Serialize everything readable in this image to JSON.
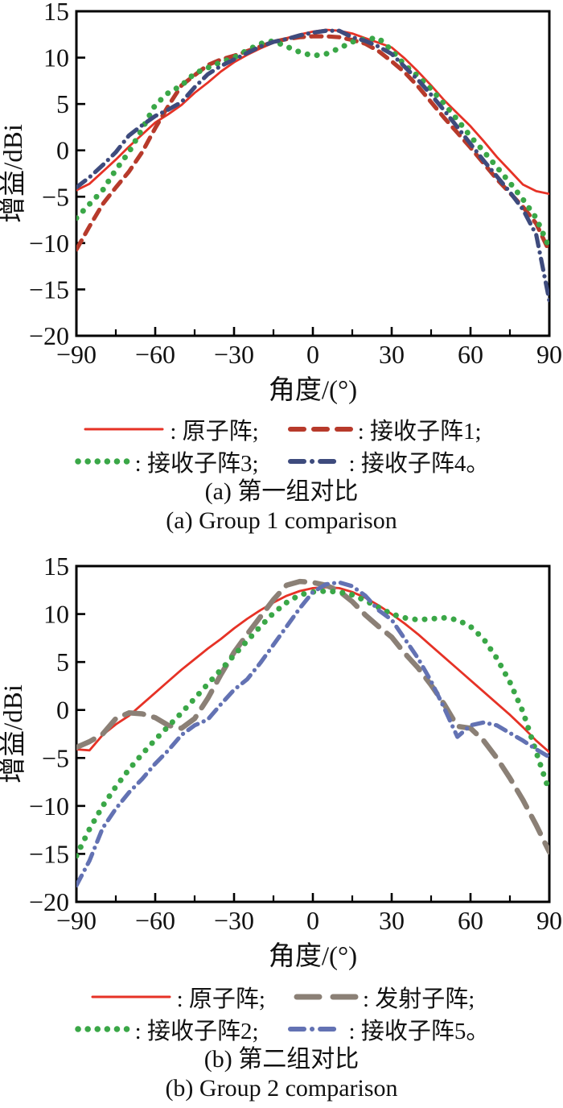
{
  "chart_data": [
    {
      "id": "a",
      "type": "line",
      "xlabel": "角度/(°)",
      "ylabel": "增益/dBi",
      "xlim": [
        -90,
        90
      ],
      "ylim": [
        -20,
        15
      ],
      "x_major_ticks": [
        -90,
        -60,
        -30,
        0,
        30,
        60,
        90
      ],
      "x_minor_step": 15,
      "y_major_ticks": [
        15,
        10,
        5,
        0,
        -5,
        -10,
        -15,
        -20
      ],
      "grid": false,
      "legend_position": "below-axis",
      "frame_color": "#000000",
      "x": [
        -90,
        -85,
        -80,
        -75,
        -70,
        -65,
        -60,
        -55,
        -50,
        -45,
        -40,
        -35,
        -30,
        -25,
        -20,
        -15,
        -10,
        -5,
        0,
        5,
        10,
        15,
        20,
        25,
        30,
        35,
        40,
        45,
        50,
        55,
        60,
        65,
        70,
        75,
        80,
        85,
        90
      ],
      "series": [
        {
          "name": "原子阵",
          "legend_label": ": 原子阵;",
          "color": "#e63226",
          "style": "solid",
          "values": [
            -4.3,
            -3.6,
            -2.3,
            -1.0,
            0.4,
            1.7,
            3.0,
            3.9,
            4.9,
            6.2,
            7.3,
            8.5,
            9.5,
            10.3,
            11.0,
            11.6,
            12.1,
            12.5,
            12.8,
            13.0,
            12.9,
            12.6,
            12.1,
            11.6,
            11.1,
            9.9,
            8.5,
            7.0,
            5.4,
            4.0,
            2.6,
            1.0,
            -0.7,
            -2.2,
            -3.7,
            -4.4,
            -4.7
          ]
        },
        {
          "name": "接收子阵1",
          "legend_label": ": 接收子阵1;",
          "color": "#b73a2b",
          "style": "dashed",
          "values": [
            -10.7,
            -8.2,
            -5.8,
            -4.0,
            -2.3,
            -0.2,
            2.4,
            4.8,
            7.0,
            8.1,
            9.2,
            9.8,
            10.2,
            10.7,
            11.2,
            11.7,
            12.0,
            12.2,
            12.3,
            12.3,
            12.2,
            11.9,
            11.5,
            10.7,
            9.6,
            8.4,
            6.9,
            5.2,
            3.5,
            1.9,
            0.3,
            -1.4,
            -3.1,
            -4.6,
            -6.1,
            -7.9,
            -10.9
          ]
        },
        {
          "name": "接收子阵3",
          "legend_label": ": 接收子阵3;",
          "color": "#3aa747",
          "style": "dotted",
          "values": [
            -7.3,
            -5.8,
            -4.3,
            -2.1,
            -0.2,
            2.3,
            4.9,
            6.2,
            7.0,
            8.3,
            8.9,
            9.5,
            10.0,
            10.8,
            11.5,
            11.8,
            11.2,
            10.6,
            10.2,
            10.4,
            11.0,
            11.7,
            12.0,
            12.1,
            10.8,
            9.2,
            8.0,
            6.6,
            5.0,
            3.3,
            1.5,
            -0.1,
            -1.8,
            -3.5,
            -5.3,
            -7.3,
            -10.5
          ]
        },
        {
          "name": "接收子阵4",
          "legend_label": ": 接收子阵4。",
          "color": "#3e4b7d",
          "style": "dashdot",
          "values": [
            -4.0,
            -2.9,
            -1.6,
            -0.2,
            1.6,
            2.7,
            3.7,
            4.4,
            5.2,
            6.8,
            8.2,
            9.1,
            9.8,
            10.5,
            11.2,
            11.7,
            12.0,
            12.4,
            12.7,
            12.9,
            12.9,
            12.2,
            11.8,
            11.2,
            10.4,
            9.0,
            7.6,
            6.0,
            4.3,
            2.5,
            0.7,
            -1.1,
            -2.8,
            -4.5,
            -6.4,
            -9.1,
            -16.2
          ]
        }
      ],
      "caption_zh": "(a) 第一组对比",
      "caption_en": "(a) Group 1 comparison"
    },
    {
      "id": "b",
      "type": "line",
      "xlabel": "角度/(°)",
      "ylabel": "增益/dBi",
      "xlim": [
        -90,
        90
      ],
      "ylim": [
        -20,
        15
      ],
      "x_major_ticks": [
        -90,
        -60,
        -30,
        0,
        30,
        60,
        90
      ],
      "x_minor_step": 15,
      "y_major_ticks": [
        15,
        10,
        5,
        0,
        -5,
        -10,
        -15,
        -20
      ],
      "grid": false,
      "legend_position": "below-axis",
      "frame_color": "#000000",
      "x": [
        -90,
        -85,
        -80,
        -75,
        -70,
        -65,
        -60,
        -55,
        -50,
        -45,
        -40,
        -35,
        -30,
        -25,
        -20,
        -15,
        -10,
        -5,
        0,
        5,
        10,
        15,
        20,
        25,
        30,
        35,
        40,
        45,
        50,
        55,
        60,
        65,
        70,
        75,
        80,
        85,
        90
      ],
      "series": [
        {
          "name": "原子阵",
          "legend_label": ": 原子阵;",
          "color": "#e63226",
          "style": "solid",
          "values": [
            -4.1,
            -4.2,
            -2.6,
            -1.5,
            -0.6,
            0.6,
            1.8,
            3.0,
            4.2,
            5.3,
            6.4,
            7.4,
            8.5,
            9.5,
            10.4,
            11.2,
            11.9,
            12.4,
            12.7,
            12.8,
            12.7,
            12.3,
            11.7,
            10.9,
            10.0,
            9.0,
            7.9,
            6.7,
            5.5,
            4.3,
            3.1,
            1.9,
            0.7,
            -0.5,
            -1.8,
            -3.2,
            -4.4
          ]
        },
        {
          "name": "发射子阵",
          "legend_label": ": 发射子阵;",
          "color": "#8b8076",
          "style": "longdash",
          "values": [
            -3.9,
            -3.3,
            -2.5,
            -0.9,
            -0.3,
            -0.4,
            -0.8,
            -1.6,
            -1.9,
            -0.9,
            1.2,
            3.7,
            6.0,
            7.9,
            9.7,
            11.5,
            13.0,
            13.4,
            13.3,
            13.0,
            12.4,
            11.3,
            9.9,
            8.7,
            7.6,
            5.9,
            4.4,
            2.6,
            0.6,
            -1.7,
            -1.9,
            -3.2,
            -5.0,
            -7.1,
            -9.4,
            -12.0,
            -14.8
          ]
        },
        {
          "name": "接收子阵2",
          "legend_label": ": 接收子阵2;",
          "color": "#3aa747",
          "style": "dotted",
          "values": [
            -15.2,
            -12.4,
            -10.0,
            -8.0,
            -6.2,
            -4.6,
            -3.1,
            -1.7,
            -0.3,
            1.2,
            2.7,
            4.2,
            5.7,
            7.2,
            8.7,
            10.1,
            11.2,
            12.0,
            12.3,
            12.4,
            12.3,
            12.0,
            11.4,
            10.7,
            10.0,
            9.6,
            9.4,
            9.5,
            9.6,
            9.4,
            8.7,
            7.4,
            5.4,
            2.9,
            -0.2,
            -4.4,
            -8.5
          ]
        },
        {
          "name": "接收子阵5",
          "legend_label": ": 接收子阵5。",
          "color": "#6372b3",
          "style": "dashdot",
          "values": [
            -18.3,
            -15.7,
            -12.3,
            -10.3,
            -8.6,
            -7.2,
            -5.6,
            -4.2,
            -2.6,
            -1.6,
            -1.0,
            0.6,
            2.1,
            3.2,
            4.9,
            6.8,
            8.7,
            10.6,
            12.3,
            13.1,
            13.3,
            12.9,
            11.9,
            10.4,
            9.4,
            7.4,
            5.4,
            3.0,
            0.2,
            -2.8,
            -1.6,
            -1.3,
            -1.6,
            -2.4,
            -3.2,
            -4.1,
            -4.9
          ]
        }
      ],
      "caption_zh": "(b) 第二组对比",
      "caption_en": "(b) Group 2 comparison"
    }
  ]
}
